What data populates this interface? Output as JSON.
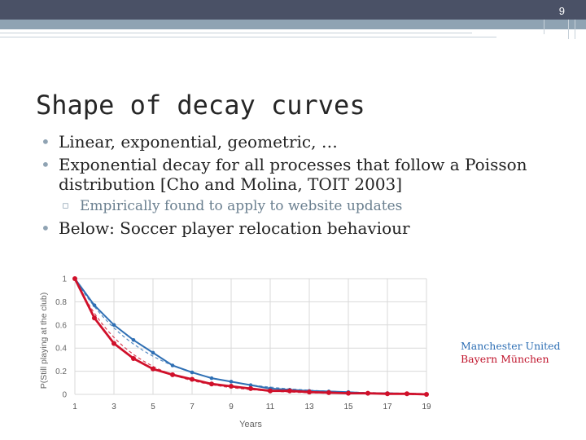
{
  "slide": {
    "number": "9"
  },
  "title": "Shape of decay curves",
  "bullets": {
    "b1": "Linear, exponential, geometric, …",
    "b2_line1": "Exponential decay for all processes that follow a Poisson",
    "b2_line2": "distribution [Cho and Molina, TOIT 2003]",
    "sub1": "Empirically found to apply to website updates",
    "b3": "Below: Soccer player relocation behaviour"
  },
  "colors": {
    "series1": "#2e6fb4",
    "series2": "#d0102a",
    "accent": "#8fa3b3"
  },
  "chart_data": {
    "type": "line",
    "title": "",
    "xlabel": "Years",
    "ylabel": "P(Still playing at the club)",
    "xlim": [
      1,
      19
    ],
    "ylim": [
      0,
      1
    ],
    "xticks": [
      "1",
      "3",
      "5",
      "7",
      "9",
      "11",
      "13",
      "15",
      "17",
      "19"
    ],
    "yticks": [
      "0",
      "0.2",
      "0.4",
      "0.6",
      "0.8",
      "1"
    ],
    "grid": true,
    "legend": "right",
    "series": [
      {
        "name": "Manchester United",
        "x": [
          1,
          2,
          3,
          4,
          5,
          6,
          7,
          8,
          9,
          10,
          11,
          12,
          13,
          14,
          15,
          16,
          17,
          18,
          19
        ],
        "values": [
          1.0,
          0.77,
          0.6,
          0.47,
          0.36,
          0.25,
          0.19,
          0.14,
          0.11,
          0.08,
          0.05,
          0.04,
          0.03,
          0.025,
          0.02,
          0.01,
          0.01,
          0.005,
          0.0
        ]
      },
      {
        "name": "Bayern München",
        "x": [
          1,
          2,
          3,
          4,
          5,
          6,
          7,
          8,
          9,
          10,
          11,
          12,
          13,
          14,
          15,
          16,
          17,
          18,
          19
        ],
        "values": [
          1.0,
          0.66,
          0.44,
          0.31,
          0.22,
          0.17,
          0.13,
          0.09,
          0.07,
          0.05,
          0.03,
          0.03,
          0.02,
          0.015,
          0.01,
          0.01,
          0.005,
          0.005,
          0.0
        ]
      }
    ]
  }
}
